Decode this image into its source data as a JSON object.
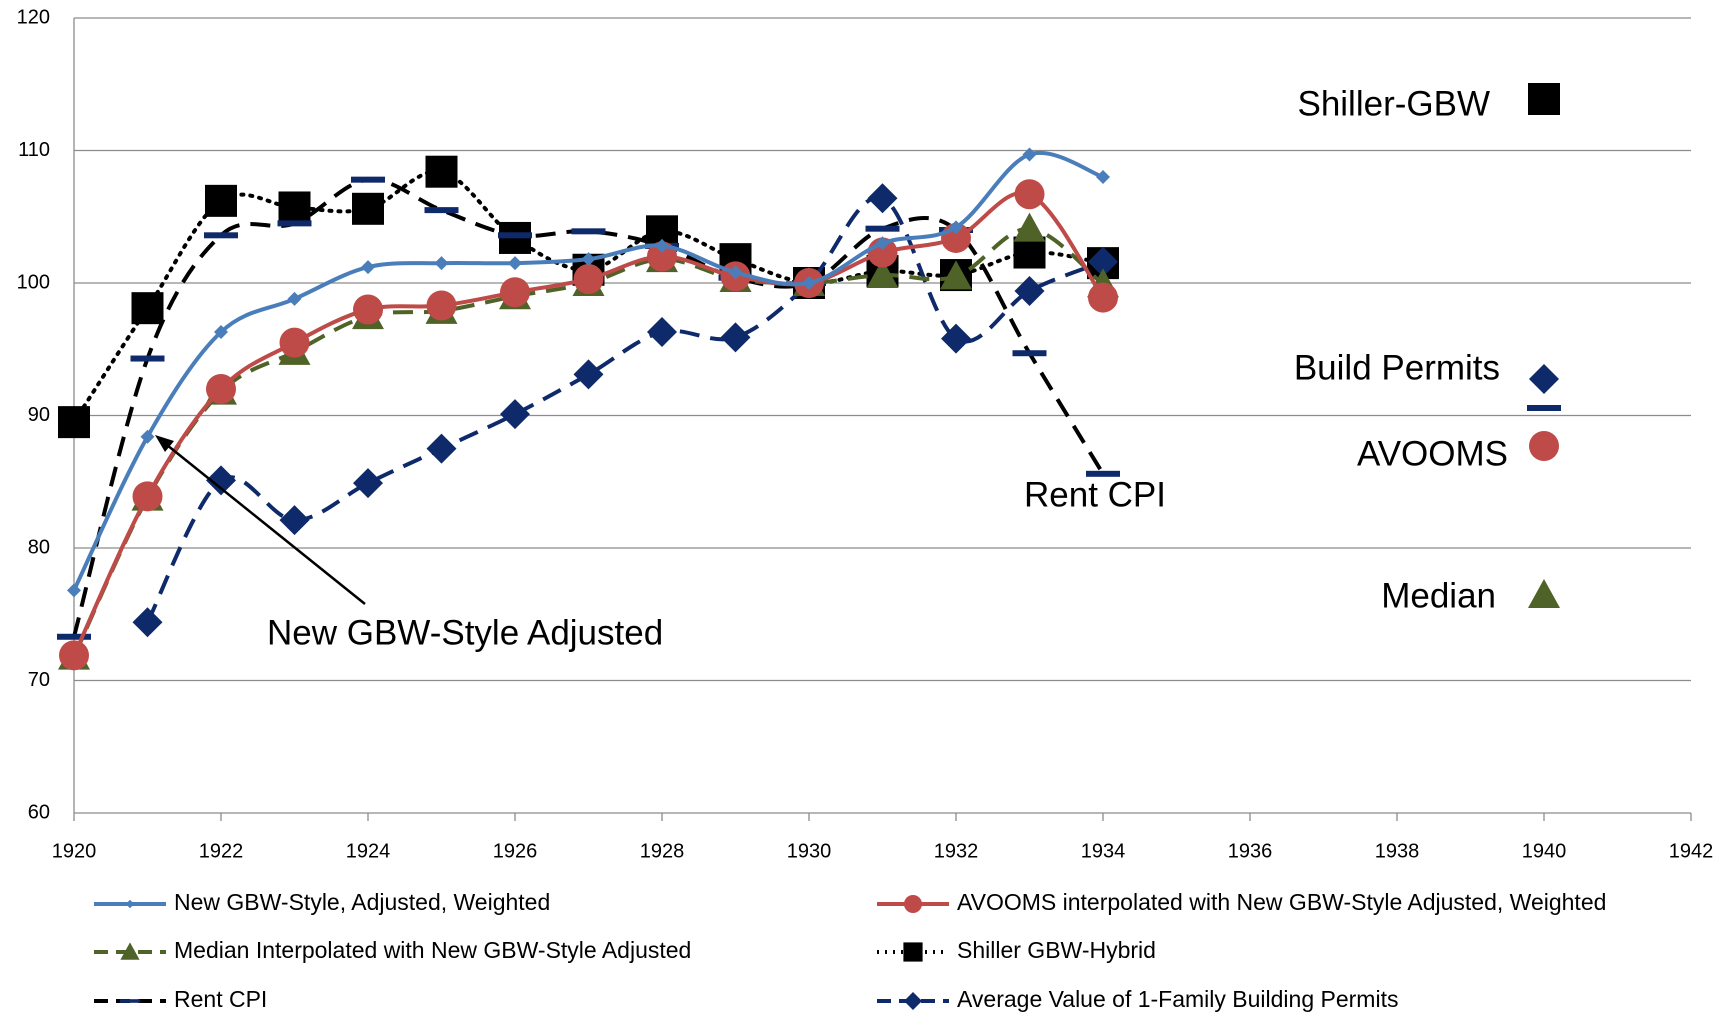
{
  "chart_data": {
    "type": "line",
    "x": [
      1920,
      1921,
      1922,
      1923,
      1924,
      1925,
      1926,
      1927,
      1928,
      1929,
      1930,
      1931,
      1932,
      1933,
      1934
    ],
    "series": [
      {
        "name": "New GBW-Style, Adjusted, Weighted",
        "color": "#4a7ebb",
        "marker": "diamond",
        "dash": "none",
        "values": [
          76.8,
          88.4,
          96.3,
          98.8,
          101.2,
          101.5,
          101.5,
          101.8,
          102.8,
          100.8,
          100,
          103,
          104.2,
          109.7,
          108
        ]
      },
      {
        "name": "AVOOMS interpolated with New GBW-Style Adjusted, Weighted",
        "color": "#be4b48",
        "marker": "circle",
        "dash": "none",
        "values": [
          71.9,
          83.9,
          92,
          95.5,
          98,
          98.3,
          99.3,
          100.3,
          102,
          100.5,
          100,
          102.3,
          103.4,
          106.7,
          98.9
        ]
      },
      {
        "name": "Median Interpolated with New GBW-Style Adjusted",
        "color": "#4f6228",
        "marker": "triangle",
        "dash": "long-dash",
        "values": [
          71.8,
          83.8,
          91.8,
          94.8,
          97.5,
          97.9,
          99,
          100,
          101.8,
          100.3,
          100,
          100.6,
          100.5,
          104.1,
          99.9
        ]
      },
      {
        "name": "Shiller GBW-Hybrid",
        "color": "#000000",
        "marker": "square",
        "dash": "dot",
        "values": [
          89.5,
          98.1,
          106.2,
          105.7,
          105.6,
          108.4,
          103.4,
          101,
          103.9,
          101.8,
          100,
          100.9,
          100.6,
          102.3,
          101.5
        ]
      },
      {
        "name": "Rent CPI",
        "color": "#000000",
        "marker": "dash",
        "dash": "long-dash",
        "values": [
          73.3,
          94.3,
          103.6,
          104.5,
          107.8,
          105.5,
          103.6,
          103.9,
          102.8,
          100.4,
          100,
          104.1,
          104,
          94.7,
          85.6
        ]
      },
      {
        "name": "Average Value of 1-Family Building Permits",
        "color": "#0f2a6b",
        "marker": "diamond-large",
        "dash": "long-dash",
        "values": [
          null,
          74.4,
          85.1,
          82.1,
          84.9,
          87.5,
          90.1,
          93.1,
          96.3,
          95.9,
          100,
          106.4,
          95.8,
          99.4,
          101.6
        ]
      }
    ],
    "xlim": [
      1920,
      1942
    ],
    "xticks": [
      1920,
      1922,
      1924,
      1926,
      1928,
      1930,
      1932,
      1934,
      1936,
      1938,
      1940,
      1942
    ],
    "ylim": [
      60,
      120
    ],
    "yticks": [
      60,
      70,
      80,
      90,
      100,
      110,
      120
    ],
    "grid": true,
    "legend": "bottom",
    "annotations": [
      "Shiller-GBW",
      "Build Permits",
      "AVOOMS",
      "Rent CPI",
      "Median",
      "New GBW-Style Adjusted"
    ]
  }
}
